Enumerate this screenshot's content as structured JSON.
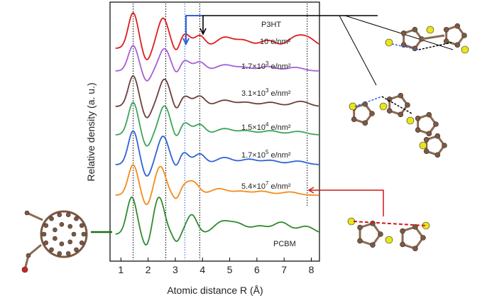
{
  "chart_data": {
    "type": "line",
    "xlabel": "Atomic distance R (Å)",
    "ylabel": "Relative density (a. u.)",
    "xlim": [
      0.6,
      8.3
    ],
    "xticks": [
      1,
      2,
      3,
      4,
      5,
      6,
      7,
      8
    ],
    "top_label": "P3HT",
    "reference_lines_x": [
      1.45,
      2.65,
      3.35,
      3.9,
      7.85
    ],
    "series": [
      {
        "name": "10 e/nm²",
        "label": "10 e",
        "unit": "/nm²",
        "color": "#e01b1b",
        "peaks": [
          [
            1.45,
            1.0
          ],
          [
            2.55,
            0.85
          ],
          [
            3.35,
            0.4
          ],
          [
            3.9,
            0.35
          ],
          [
            4.8,
            0.3
          ],
          [
            5.5,
            0.22
          ],
          [
            6.4,
            0.22
          ],
          [
            7.4,
            0.28
          ],
          [
            7.9,
            0.25
          ]
        ]
      },
      {
        "name": "1.7×10³ e/nm²",
        "label": "1.7×10",
        "exp": "3",
        "unit": " e/nm²",
        "color": "#a65fd6",
        "peaks": [
          [
            1.45,
            0.85
          ],
          [
            2.6,
            0.75
          ],
          [
            3.35,
            0.35
          ],
          [
            3.9,
            0.3
          ],
          [
            4.8,
            0.2
          ],
          [
            5.5,
            0.12
          ],
          [
            6.4,
            0.15
          ],
          [
            7.4,
            0.12
          ]
        ]
      },
      {
        "name": "3.1×10³ e/nm²",
        "label": "3.1×10",
        "exp": "3",
        "unit": " e/nm²",
        "color": "#6b3f3a",
        "peaks": [
          [
            1.45,
            0.9
          ],
          [
            2.6,
            0.8
          ],
          [
            3.35,
            0.3
          ],
          [
            3.9,
            0.3
          ],
          [
            4.8,
            0.18
          ],
          [
            5.6,
            0.12
          ],
          [
            6.5,
            0.12
          ],
          [
            7.6,
            0.15
          ]
        ]
      },
      {
        "name": "1.5×10⁴ e/nm²",
        "label": "1.5×10",
        "exp": "4",
        "unit": " e/nm²",
        "color": "#3aa55a",
        "peaks": [
          [
            1.45,
            0.95
          ],
          [
            2.6,
            0.85
          ],
          [
            3.35,
            0.35
          ],
          [
            3.9,
            0.3
          ],
          [
            4.8,
            0.18
          ],
          [
            5.6,
            0.12
          ],
          [
            6.5,
            0.12
          ],
          [
            7.5,
            0.1
          ]
        ]
      },
      {
        "name": "1.7×10⁵ e/nm²",
        "label": "1.7×10",
        "exp": "5",
        "unit": " e/nm²",
        "color": "#2f62d6",
        "peaks": [
          [
            1.45,
            0.95
          ],
          [
            2.55,
            0.8
          ],
          [
            3.3,
            0.35
          ],
          [
            3.9,
            0.3
          ],
          [
            4.8,
            0.2
          ],
          [
            5.7,
            0.15
          ],
          [
            6.5,
            0.12
          ],
          [
            7.5,
            0.1
          ]
        ]
      },
      {
        "name": "5.4×10⁷ e/nm²",
        "label": "5.4×10",
        "exp": "7",
        "unit": " e/nm²",
        "color": "#f28c1a",
        "peaks": [
          [
            1.45,
            0.95
          ],
          [
            2.45,
            0.9
          ],
          [
            3.35,
            0.3
          ],
          [
            3.7,
            0.35
          ],
          [
            4.6,
            0.2
          ],
          [
            5.4,
            0.12
          ],
          [
            6.2,
            0.12
          ],
          [
            7.2,
            0.1
          ]
        ]
      },
      {
        "name": "PCBM",
        "label": "PCBM",
        "color": "#2e8b2e",
        "peaks": [
          [
            1.4,
            0.95
          ],
          [
            2.4,
            0.95
          ],
          [
            3.6,
            0.5
          ],
          [
            4.7,
            0.3
          ],
          [
            5.3,
            0.25
          ],
          [
            6.1,
            0.2
          ],
          [
            6.9,
            0.3
          ],
          [
            7.8,
            0.2
          ]
        ]
      }
    ]
  }
}
